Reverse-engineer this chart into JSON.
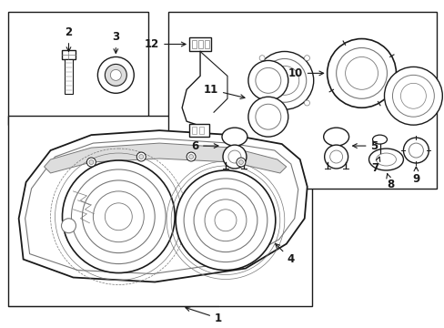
{
  "bg_color": "#ffffff",
  "line_color": "#1a1a1a",
  "gray_color": "#777777",
  "light_gray": "#dddddd",
  "fig_width": 4.89,
  "fig_height": 3.6,
  "dpi": 100,
  "boxes": {
    "main": [
      0.03,
      0.07,
      0.7,
      0.57
    ],
    "parts": [
      0.38,
      0.44,
      0.6,
      0.52
    ],
    "small": [
      0.03,
      0.62,
      0.33,
      0.35
    ]
  }
}
